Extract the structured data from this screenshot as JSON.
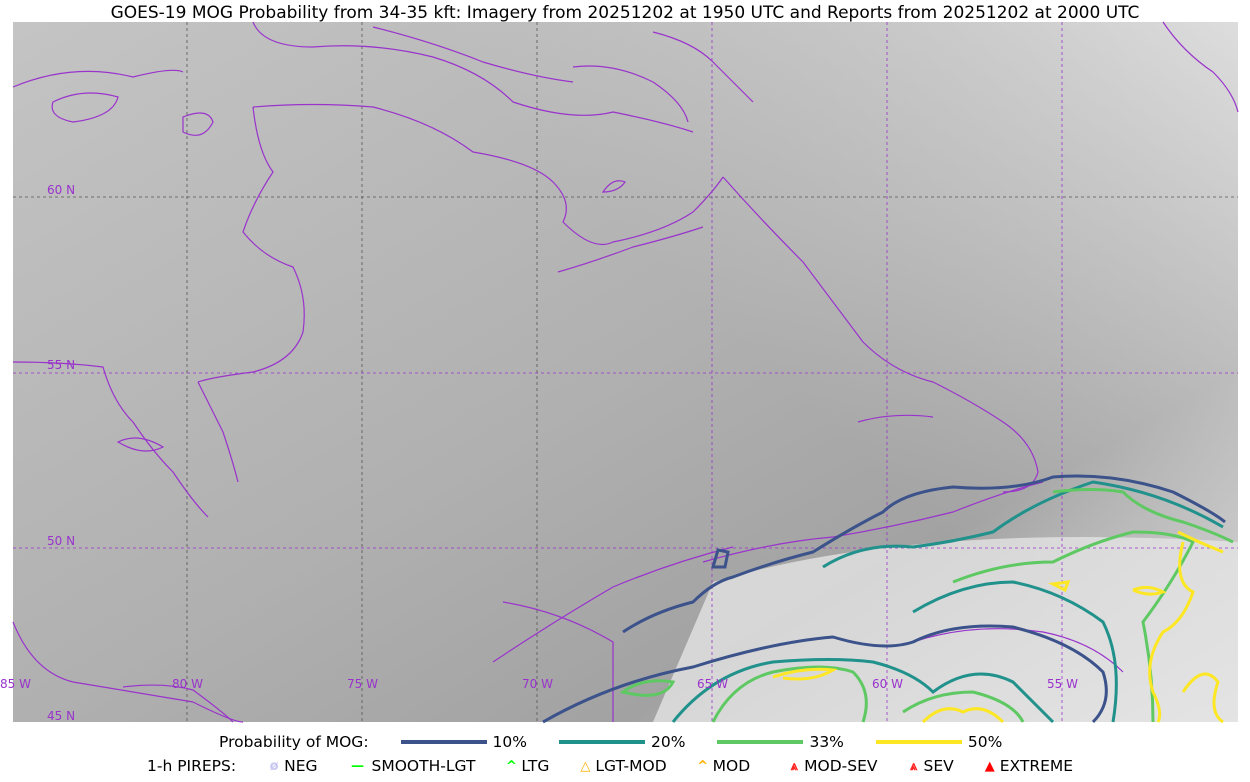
{
  "title": "GOES-19 MOG Probability from 34-35 kft: Imagery from 20251202 at 1950 UTC and Reports from 20251202 at 2000 UTC",
  "map": {
    "lat_labels": [
      "60 N",
      "55 N",
      "50 N",
      "45 N"
    ],
    "lon_labels": [
      "85 W",
      "80 W",
      "75 W",
      "70 W",
      "65 W",
      "60 W",
      "55 W"
    ],
    "coastline_color": "#9933cc",
    "background": "grayscale satellite imagery"
  },
  "legend": {
    "prob_title": "Probability of MOG:",
    "prob_items": [
      {
        "label": "10%",
        "color": "#3b528b"
      },
      {
        "label": "20%",
        "color": "#21918c"
      },
      {
        "label": "33%",
        "color": "#5ec962"
      },
      {
        "label": "50%",
        "color": "#fde725"
      }
    ],
    "pirep_title": "1-h PIREPS:",
    "pirep_items": [
      {
        "label": "NEG",
        "color": "#c8c8f0",
        "icon": "neg-icon"
      },
      {
        "label": "SMOOTH-LGT",
        "color": "#00ff00",
        "icon": "line-icon"
      },
      {
        "label": "LTG",
        "color": "#00ff00",
        "icon": "caret-icon"
      },
      {
        "label": "LGT-MOD",
        "color": "#ffb000",
        "icon": "triangle-icon"
      },
      {
        "label": "MOD",
        "color": "#ffb000",
        "icon": "caret-icon"
      },
      {
        "label": "MOD-SEV",
        "color": "#ff2020",
        "icon": "double-caret-icon"
      },
      {
        "label": "SEV",
        "color": "#ff2020",
        "icon": "double-caret-icon"
      },
      {
        "label": "EXTREME",
        "color": "#ff0000",
        "icon": "filled-triangle-icon"
      }
    ]
  }
}
